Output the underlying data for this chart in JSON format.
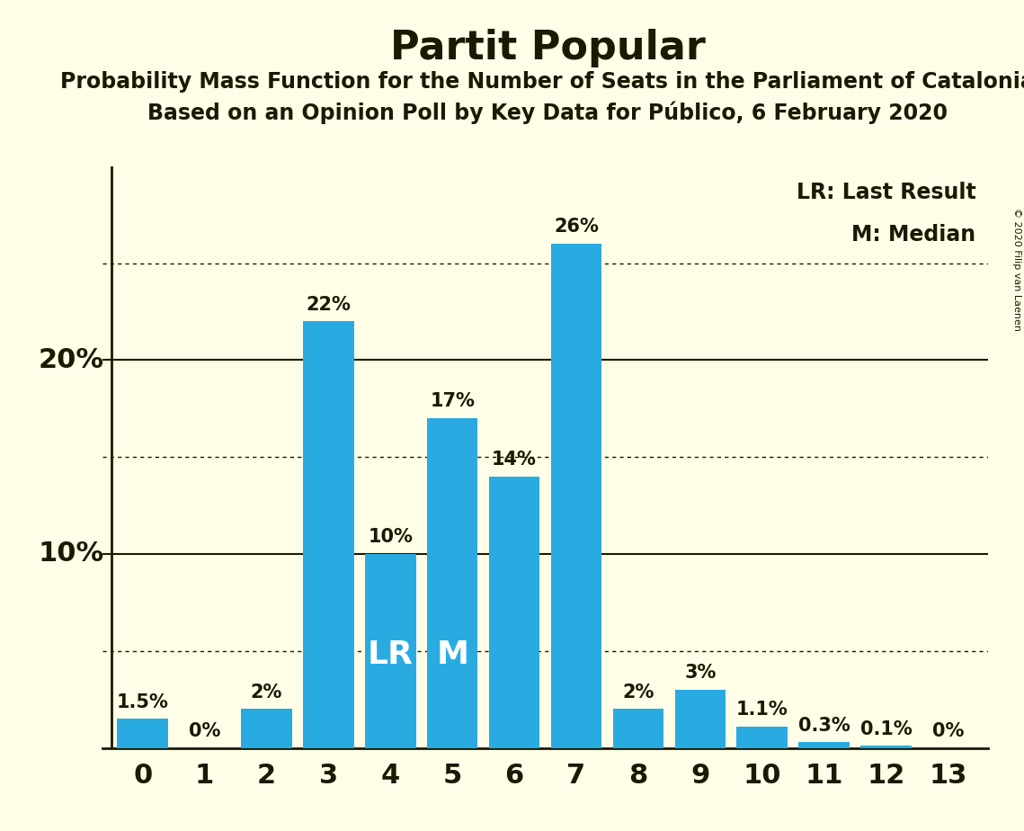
{
  "title": "Partit Popular",
  "subtitle1": "Probability Mass Function for the Number of Seats in the Parliament of Catalonia",
  "subtitle2": "Based on an Opinion Poll by Key Data for Público, 6 February 2020",
  "copyright": "© 2020 Filip van Laenen",
  "categories": [
    0,
    1,
    2,
    3,
    4,
    5,
    6,
    7,
    8,
    9,
    10,
    11,
    12,
    13
  ],
  "values": [
    1.5,
    0,
    2,
    22,
    10,
    17,
    14,
    26,
    2,
    3,
    1.1,
    0.3,
    0.1,
    0
  ],
  "labels": [
    "1.5%",
    "0%",
    "2%",
    "22%",
    "10%",
    "17%",
    "14%",
    "26%",
    "2%",
    "3%",
    "1.1%",
    "0.3%",
    "0.1%",
    "0%"
  ],
  "bar_color": "#29ABE2",
  "background_color": "#FEFEE8",
  "text_color": "#1A1A00",
  "lr_bar": 4,
  "median_bar": 5,
  "lr_label": "LR",
  "median_label": "M",
  "legend_lr": "LR: Last Result",
  "legend_m": "M: Median",
  "dotted_lines": [
    5,
    15,
    25
  ],
  "solid_lines": [
    10,
    20
  ],
  "ylim": [
    0,
    30
  ],
  "label_fontsize": 15,
  "title_fontsize": 32,
  "subtitle_fontsize": 17,
  "ytick_fontsize": 22,
  "xtick_fontsize": 22,
  "legend_fontsize": 17,
  "inside_label_fontsize": 26
}
